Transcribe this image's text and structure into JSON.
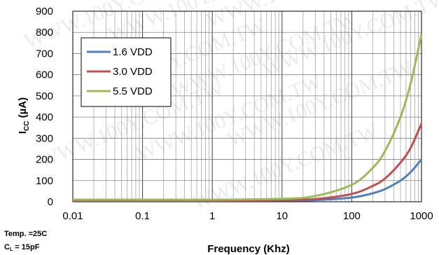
{
  "chart_data": {
    "type": "line",
    "xscale": "log",
    "xlim": [
      0.01,
      1000
    ],
    "ylim": [
      0,
      900
    ],
    "grid": true,
    "legend_position": "top-left",
    "xlabel": "Frequency (Khz)",
    "ylabel_main": "I",
    "ylabel_sub": "CC",
    "ylabel_rest": "  (µA)",
    "x_ticks": [
      0.01,
      0.1,
      1,
      10,
      100,
      1000
    ],
    "x_tick_labels": [
      "0.01",
      "0.1",
      "1",
      "10",
      "100",
      "1000"
    ],
    "y_ticks": [
      0,
      100,
      200,
      300,
      400,
      500,
      600,
      700,
      800,
      900
    ],
    "y_tick_labels": [
      "0",
      "100",
      "200",
      "300",
      "400",
      "500",
      "600",
      "700",
      "800",
      "900"
    ],
    "x": [
      0.01,
      0.1,
      1,
      10,
      30,
      100,
      200,
      300,
      500,
      700,
      1000
    ],
    "series": [
      {
        "name": "1.6 VDD",
        "color": "#4F81BD",
        "values": [
          5,
          5,
          5,
          6,
          8,
          20,
          40,
          60,
          100,
          140,
          200
        ]
      },
      {
        "name": "3.0 VDD",
        "color": "#C0504D",
        "values": [
          7,
          7,
          7,
          9,
          13,
          37,
          75,
          110,
          185,
          255,
          370
        ]
      },
      {
        "name": "5.5 VDD",
        "color": "#9BBB59",
        "values": [
          10,
          10,
          10,
          14,
          27,
          80,
          160,
          240,
          400,
          560,
          790
        ]
      }
    ],
    "conditions": {
      "temp": "Temp. =25C",
      "load_main": "C",
      "load_sub": "L",
      "load_rest": " = 15pF"
    },
    "watermark": "WWW.100Y.COM.TW"
  }
}
